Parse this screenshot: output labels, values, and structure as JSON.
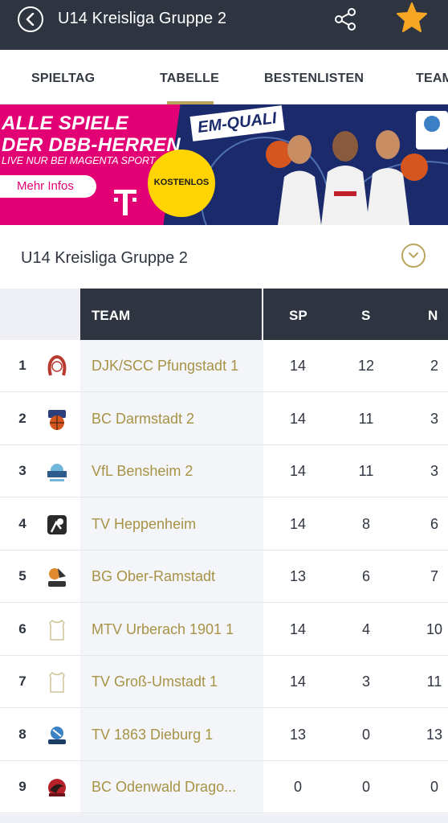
{
  "header": {
    "title": "U14 Kreisliga Gruppe 2"
  },
  "tabs": [
    {
      "label": "SPIELTAG",
      "active": false
    },
    {
      "label": "TABELLE",
      "active": true
    },
    {
      "label": "BESTENLISTEN",
      "active": false
    },
    {
      "label": "TEAM",
      "active": false
    }
  ],
  "banner": {
    "headline_1": "ALLE SPIELE",
    "headline_2": "DER DBB-HERREN",
    "subline": "LIVE NUR BEI MAGENTA SPORT",
    "cta_label": "Mehr Infos",
    "badge_label": "KOSTENLOS",
    "tag_label": "EM-QUALI",
    "colors": {
      "magenta": "#e20074",
      "navy": "#1b2a6b",
      "yellow": "#ffd400"
    }
  },
  "league": {
    "name": "U14 Kreisliga Gruppe 2"
  },
  "table": {
    "columns": {
      "team": "TEAM",
      "sp": "SP",
      "s": "S",
      "n": "N"
    },
    "rows": [
      {
        "rank": "1",
        "team": "DJK/SCC Pfungstadt 1",
        "sp": "14",
        "s": "12",
        "n": "2",
        "logo": "pfungstadt-logo"
      },
      {
        "rank": "2",
        "team": "BC Darmstadt 2",
        "sp": "14",
        "s": "11",
        "n": "3",
        "logo": "darmstadt-logo"
      },
      {
        "rank": "3",
        "team": "VfL Bensheim 2",
        "sp": "14",
        "s": "11",
        "n": "3",
        "logo": "bensheim-logo"
      },
      {
        "rank": "4",
        "team": "TV Heppenheim",
        "sp": "14",
        "s": "8",
        "n": "6",
        "logo": "heppenheim-logo"
      },
      {
        "rank": "5",
        "team": "BG Ober-Ramstadt",
        "sp": "13",
        "s": "6",
        "n": "7",
        "logo": "ober-ramstadt-logo"
      },
      {
        "rank": "6",
        "team": "MTV Urberach 1901 1",
        "sp": "14",
        "s": "4",
        "n": "10",
        "logo": "jersey-placeholder"
      },
      {
        "rank": "7",
        "team": "TV Groß-Umstadt 1",
        "sp": "14",
        "s": "3",
        "n": "11",
        "logo": "jersey-placeholder"
      },
      {
        "rank": "8",
        "team": "TV 1863 Dieburg 1",
        "sp": "13",
        "s": "0",
        "n": "13",
        "logo": "dieburg-logo"
      },
      {
        "rank": "9",
        "team": "BC Odenwald Drago...",
        "sp": "0",
        "s": "0",
        "n": "0",
        "logo": "odenwald-logo"
      }
    ]
  },
  "colors": {
    "header_bg": "#2f3540",
    "accent_gold": "#b8a45a",
    "team_text": "#a69346",
    "star": "#f5a623"
  }
}
